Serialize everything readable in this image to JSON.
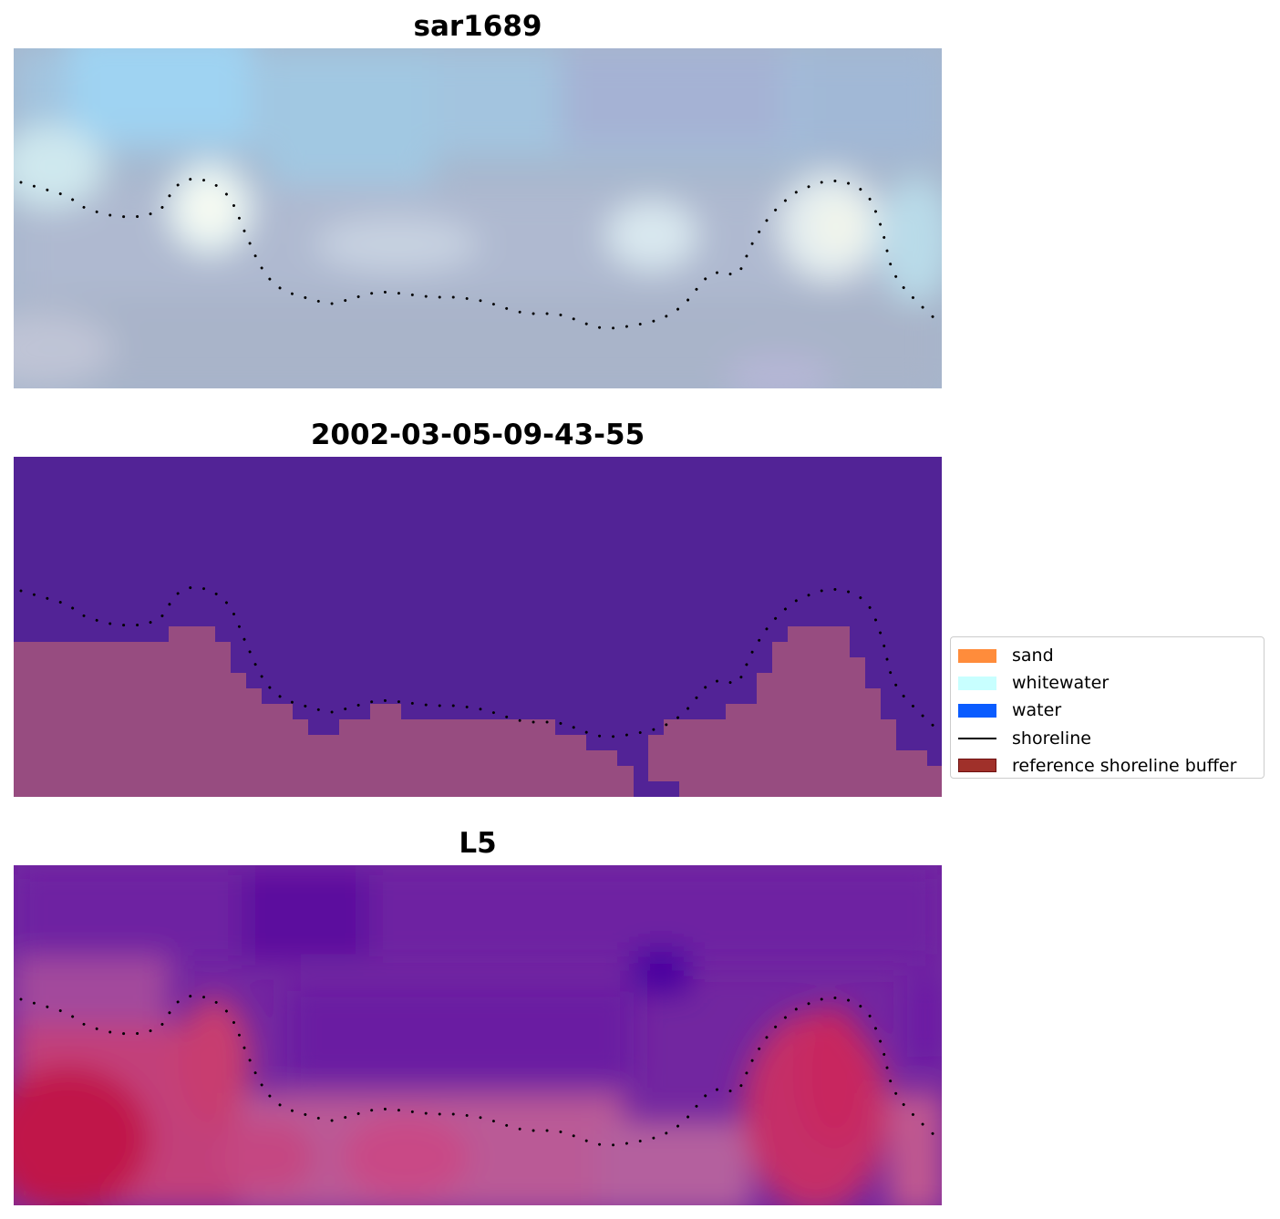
{
  "panels": [
    {
      "id": "rgb",
      "title": "sar1689"
    },
    {
      "id": "classified",
      "title": "2002-03-05-09-43-55"
    },
    {
      "id": "index",
      "title": "L5"
    }
  ],
  "legend": {
    "items": [
      {
        "label": "sand",
        "color": "#ff8c3b",
        "kind": "patch"
      },
      {
        "label": "whitewater",
        "color": "#c8ffff",
        "kind": "patch"
      },
      {
        "label": "water",
        "color": "#0a5cff",
        "kind": "patch"
      },
      {
        "label": "shoreline",
        "color": "#000000",
        "kind": "line"
      },
      {
        "label": "reference shoreline buffer",
        "color": "#a0302a",
        "kind": "patch"
      }
    ]
  },
  "colors": {
    "classified_water": "#522396",
    "classified_buffer": "#974c80",
    "shoreline_dots": "#000000"
  }
}
